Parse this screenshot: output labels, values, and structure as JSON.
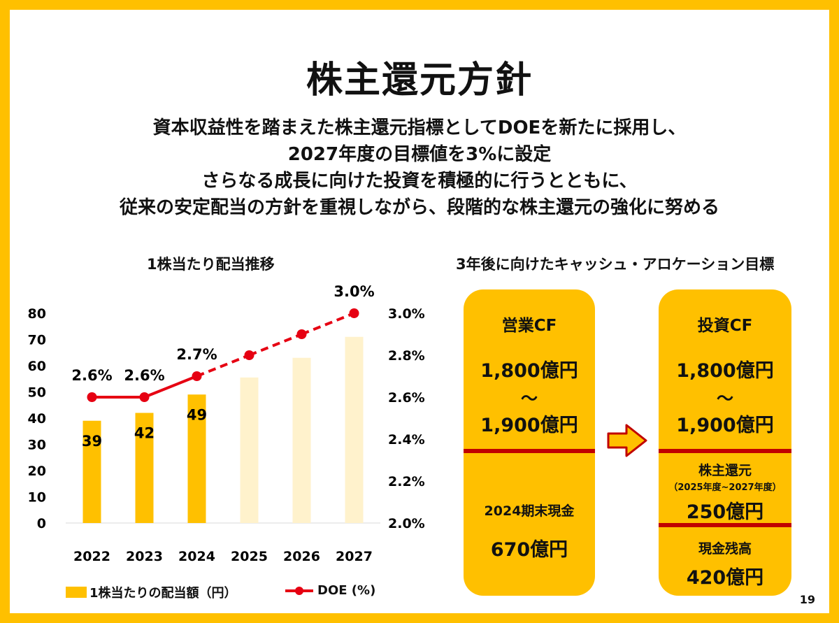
{
  "title": "株主還元方針",
  "subtitle": [
    "資本収益性を踏まえた株主還元指標としてDOEを新たに採用し、",
    "2027年度の目標値を3%に設定",
    "さらなる成長に向けた投資を積極的に行うとともに、",
    "従来の安定配当の方針を重視しながら、段階的な株主還元の強化に努める"
  ],
  "chart_title": "1株当たり配当推移",
  "chart_data": {
    "type": "bar",
    "categories": [
      "2022",
      "2023",
      "2024",
      "2025",
      "2026",
      "2027"
    ],
    "series": [
      {
        "name": "1株当たりの配当額（円）",
        "axis": "left",
        "values": [
          39,
          42,
          49,
          55.5,
          63,
          71
        ],
        "data_labels": [
          "39",
          "42",
          "49",
          "",
          "",
          ""
        ],
        "forecast_from_index": 3,
        "color": "#FFC000",
        "forecast_color": "#FFF2CC"
      },
      {
        "name": "DOE (%)",
        "type": "line",
        "axis": "right",
        "values": [
          2.6,
          2.6,
          2.7,
          2.8,
          2.9,
          3.0
        ],
        "data_labels": [
          "2.6%",
          "2.6%",
          "2.7%",
          "",
          "",
          "3.0%"
        ],
        "dashed_from_index": 2,
        "color": "#E60012"
      }
    ],
    "left_axis": {
      "ylim": [
        0,
        80
      ],
      "ticks": [
        "0",
        "10",
        "20",
        "30",
        "40",
        "50",
        "60",
        "70",
        "80"
      ]
    },
    "right_axis": {
      "ylim": [
        2.0,
        3.0
      ],
      "ticks": [
        "2.0%",
        "2.2%",
        "2.4%",
        "2.6%",
        "2.8%",
        "3.0%"
      ]
    },
    "grid": false,
    "legend": "bottom"
  },
  "allocation": {
    "title": "3年後に向けたキャッシュ・アロケーション目標",
    "left_box": {
      "heading": "営業CF",
      "range_top": "1,800億円",
      "range_sep": "〜",
      "range_bottom": "1,900億円",
      "cash_label": "2024期末現金",
      "cash_value": "670億円"
    },
    "right_box": {
      "heading": "投資CF",
      "range_top": "1,800億円",
      "range_sep": "〜",
      "range_bottom": "1,900億円",
      "return_label": "株主還元",
      "return_period": "（2025年度~2027年度）",
      "return_value": "250億円",
      "balance_label": "現金残高",
      "balance_value": "420億円"
    },
    "colors": {
      "box": "#FFC000",
      "divider": "#C00000",
      "arrow_fill": "#FFC000",
      "arrow_stroke": "#C00000"
    }
  },
  "page_number": "19"
}
